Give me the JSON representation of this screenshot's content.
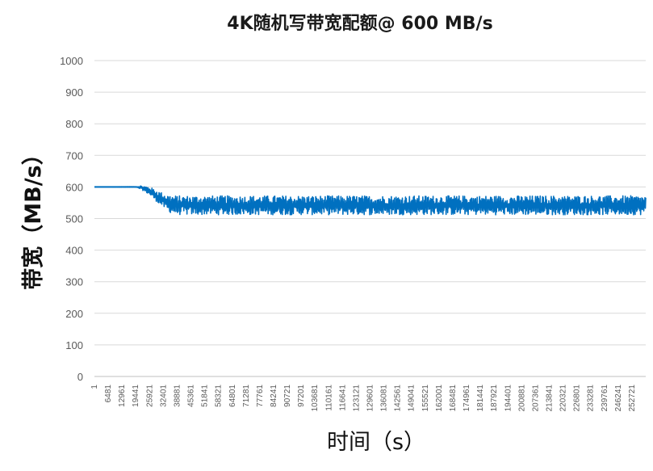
{
  "chart_data": {
    "type": "line",
    "title": "4K随机写带宽配额@ 600 MB/s",
    "xlabel": "时间（s）",
    "ylabel": "带宽（MB/s）",
    "ylim": [
      0,
      1000
    ],
    "yticks": [
      0,
      100,
      200,
      300,
      400,
      500,
      600,
      700,
      800,
      900,
      1000
    ],
    "xlim": [
      1,
      259201
    ],
    "xticks": [
      1,
      6481,
      12961,
      19441,
      25921,
      32401,
      38881,
      45361,
      51841,
      58321,
      64801,
      71281,
      77761,
      84241,
      90721,
      97201,
      103681,
      110161,
      116641,
      123121,
      129601,
      136081,
      142561,
      149041,
      155521,
      162001,
      168481,
      174961,
      181441,
      187921,
      194401,
      200881,
      207361,
      213841,
      220321,
      226801,
      233281,
      239761,
      246241,
      252721
    ],
    "grid": true,
    "legend": "none",
    "color": "#0070c0",
    "series": [
      {
        "x": [
          1,
          19441,
          22000,
          25921,
          29000,
          32401,
          35000,
          38881,
          259201
        ],
        "values": [
          600,
          600,
          598,
          588,
          570,
          555,
          545,
          540,
          540
        ],
        "band_high": [
          600,
          601,
          604,
          600,
          590,
          580,
          575,
          572,
          572
        ],
        "band_low": [
          600,
          599,
          592,
          575,
          555,
          535,
          520,
          512,
          512
        ]
      }
    ]
  }
}
